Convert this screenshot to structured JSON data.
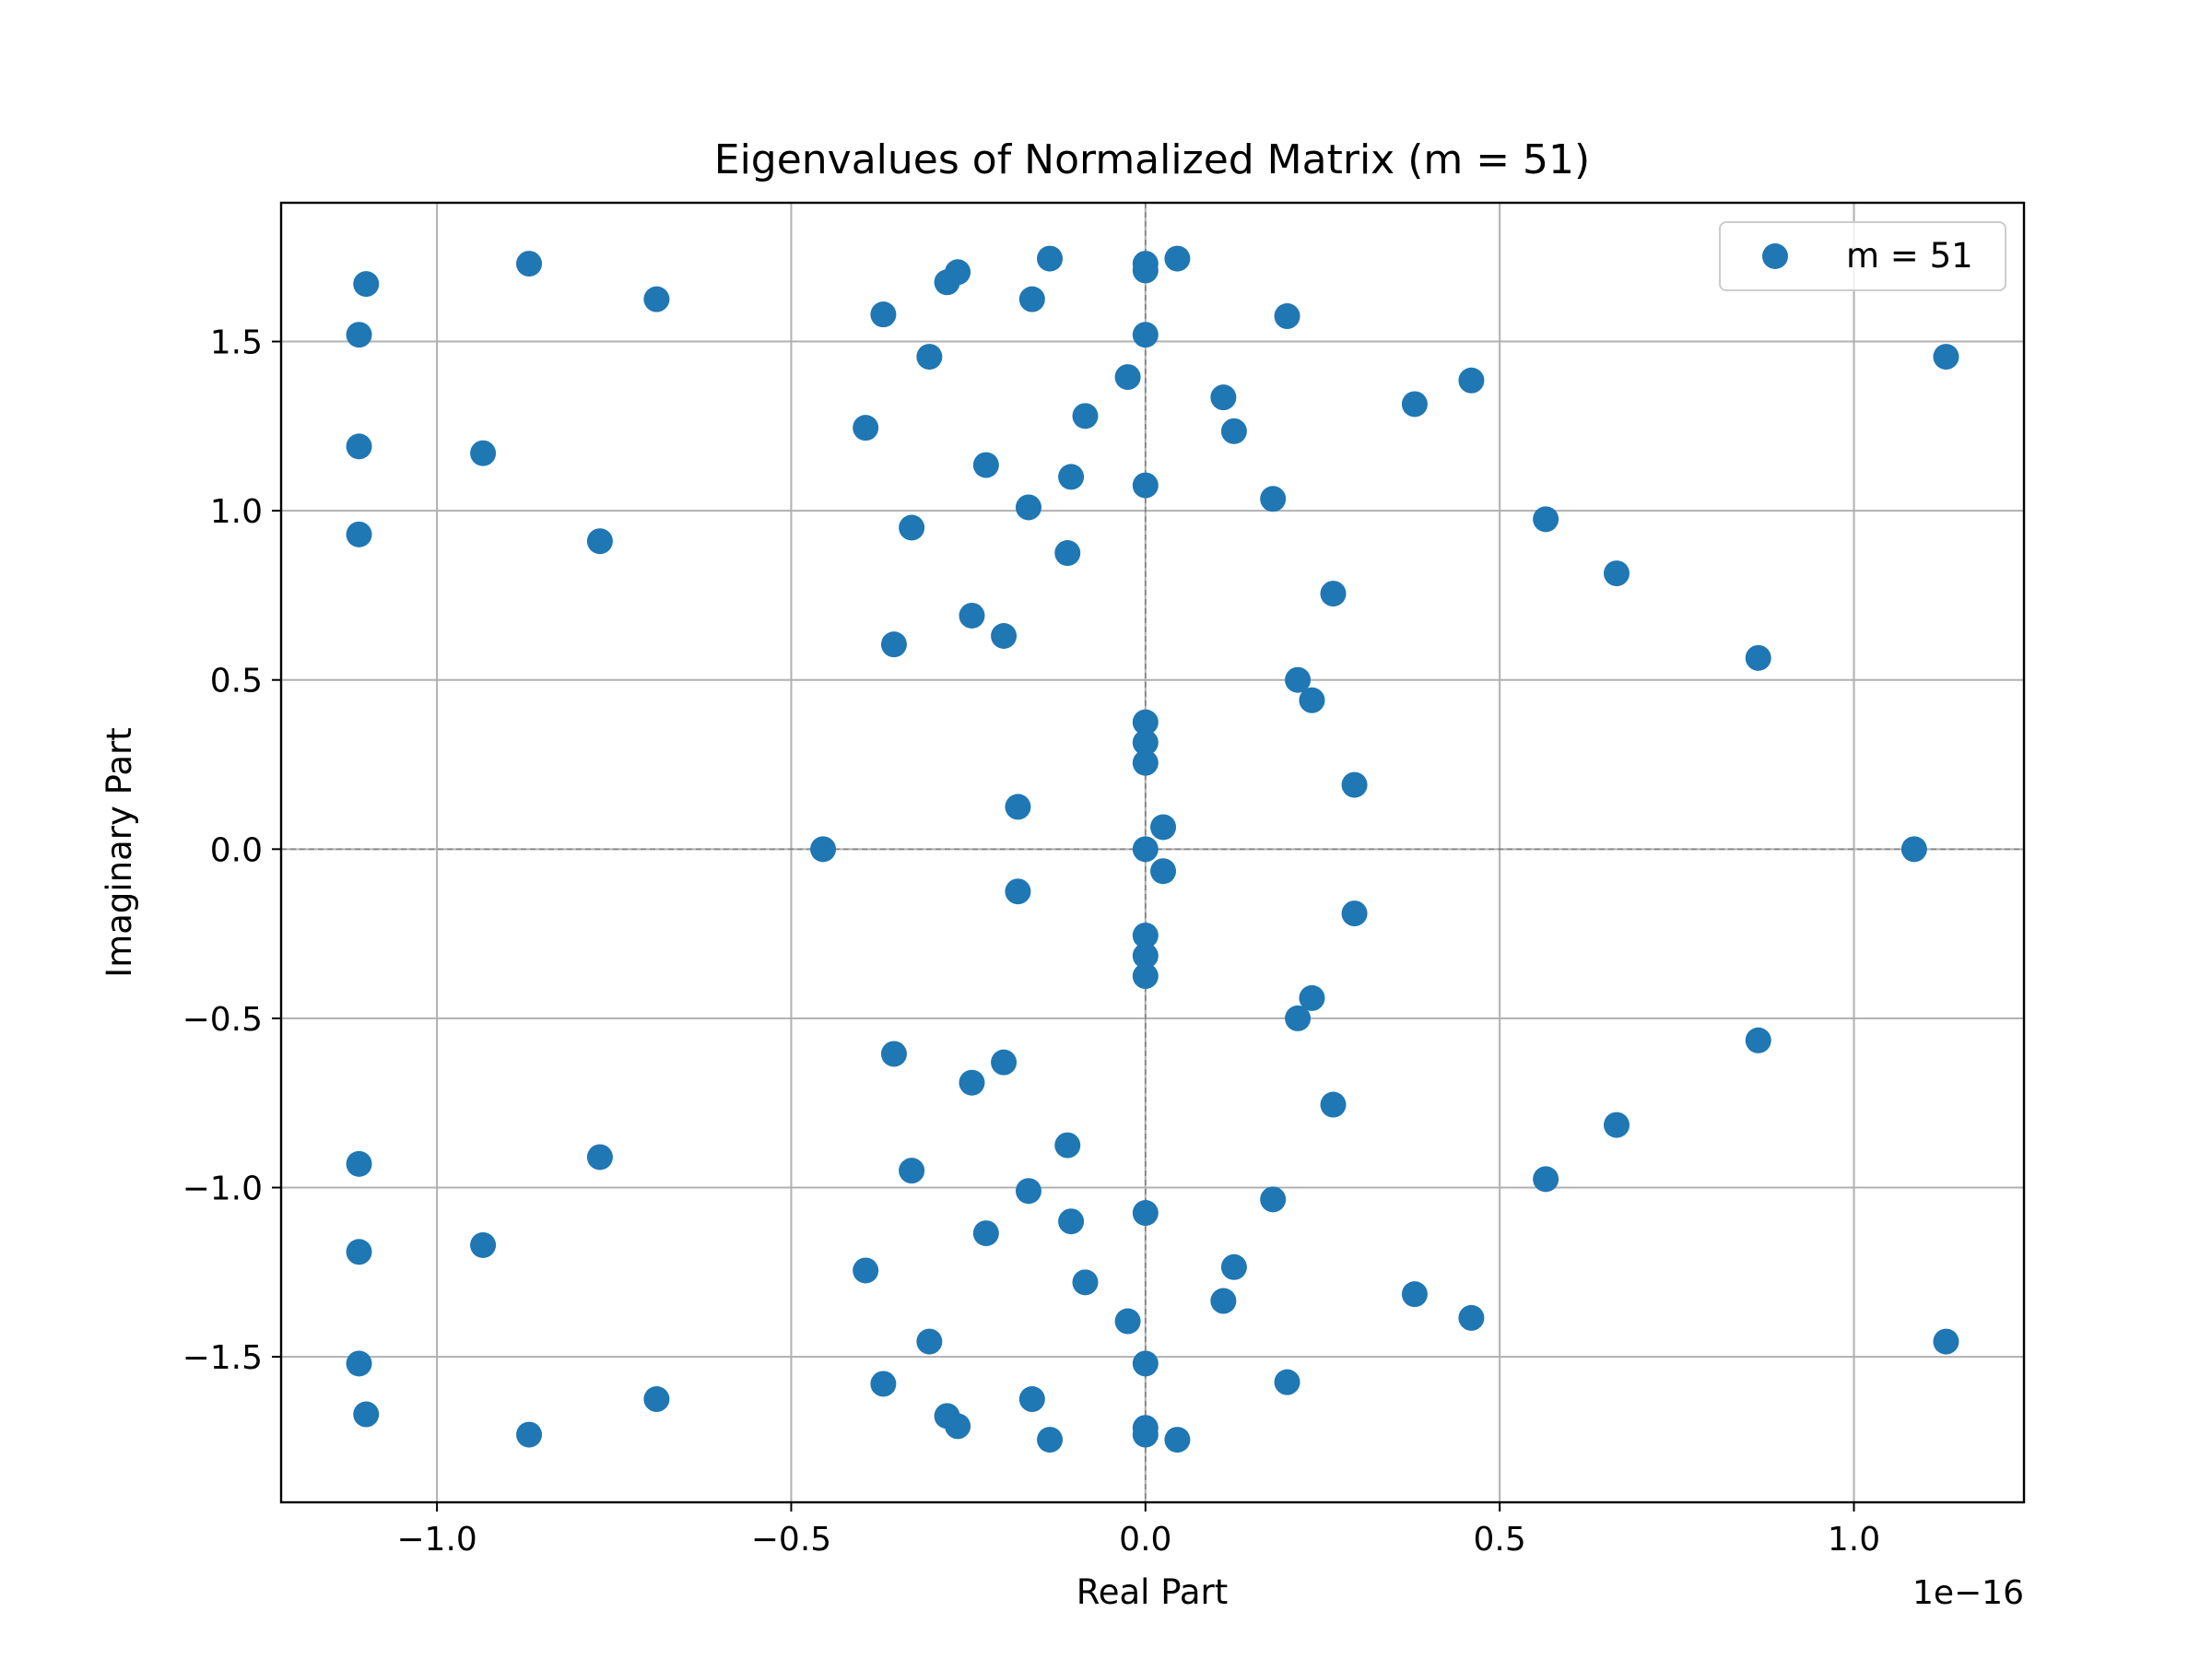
{
  "chart_data": {
    "type": "scatter",
    "title": "Eigenvalues of Normalized Matrix (m = 51)",
    "xlabel": "Real Part",
    "ylabel": "Imaginary Part",
    "x_offset_text": "1e−16",
    "x_multiplier": 1e-16,
    "xlim": [
      -1.22,
      1.24
    ],
    "ylim": [
      -1.93,
      1.91
    ],
    "xticks": [
      -1.0,
      -0.5,
      0.0,
      0.5,
      1.0
    ],
    "yticks": [
      -1.5,
      -1.0,
      -0.5,
      0.0,
      0.5,
      1.0,
      1.5
    ],
    "xtick_labels": [
      "−1.0",
      "−0.5",
      "0.0",
      "0.5",
      "1.0"
    ],
    "ytick_labels": [
      "−1.5",
      "−1.0",
      "−0.5",
      "0.0",
      "0.5",
      "1.0",
      "1.5"
    ],
    "grid": true,
    "zero_reference_lines": true,
    "legend": {
      "position": "upper right",
      "entries": [
        "m = 51"
      ]
    },
    "series": [
      {
        "name": "m = 51",
        "color": "#1f77b4",
        "x": [
          -1.1,
          -1.11,
          -1.11,
          -1.11,
          -0.87,
          -0.935,
          -0.77,
          -0.69,
          -0.455,
          -0.395,
          -0.37,
          -0.355,
          -0.33,
          -0.305,
          -0.28,
          -0.265,
          -0.245,
          -0.225,
          -0.2,
          -0.18,
          -0.165,
          -0.16,
          -0.135,
          -0.11,
          -0.105,
          -0.085,
          -0.025,
          0.0,
          0.0,
          0.0,
          0.0,
          0.0,
          0.0,
          0.0,
          0.045,
          0.025,
          0.11,
          0.125,
          0.18,
          0.2,
          0.215,
          0.235,
          0.265,
          0.295,
          0.38,
          0.46,
          0.565,
          0.665,
          0.865,
          1.085,
          1.13,
          0.0,
          -1.1,
          -1.11,
          -1.11,
          -1.11,
          -0.87,
          -0.935,
          -0.77,
          -0.69,
          -0.395,
          -0.37,
          -0.355,
          -0.33,
          -0.305,
          -0.28,
          -0.265,
          -0.245,
          -0.225,
          -0.2,
          -0.18,
          -0.165,
          -0.16,
          -0.135,
          -0.11,
          -0.105,
          -0.085,
          -0.025,
          0.0,
          0.0,
          0.0,
          0.0,
          0.0,
          0.0,
          0.0,
          0.045,
          0.025,
          0.11,
          0.125,
          0.18,
          0.2,
          0.215,
          0.235,
          0.265,
          0.295,
          0.38,
          0.46,
          0.565,
          0.665,
          0.865,
          1.13
        ],
        "y": [
          1.67,
          1.52,
          1.19,
          0.93,
          1.73,
          1.17,
          0.91,
          1.625,
          0.0,
          1.245,
          1.58,
          0.605,
          0.95,
          1.455,
          1.675,
          1.705,
          0.69,
          1.135,
          0.63,
          0.125,
          1.01,
          1.625,
          1.745,
          0.875,
          1.1,
          1.28,
          1.395,
          1.73,
          1.71,
          1.52,
          1.075,
          0.375,
          0.315,
          0.255,
          1.745,
          0.065,
          1.335,
          1.235,
          1.035,
          1.575,
          0.5,
          0.44,
          0.755,
          0.19,
          1.315,
          1.385,
          0.975,
          0.815,
          0.565,
          0.0,
          1.455,
          0.0,
          -1.67,
          -1.52,
          -1.19,
          -0.93,
          -1.73,
          -1.17,
          -0.91,
          -1.625,
          -1.245,
          -1.58,
          -0.605,
          -0.95,
          -1.455,
          -1.675,
          -1.705,
          -0.69,
          -1.135,
          -0.63,
          -0.125,
          -1.01,
          -1.625,
          -1.745,
          -0.875,
          -1.1,
          -1.28,
          -1.395,
          -1.73,
          -1.71,
          -1.52,
          -1.075,
          -0.375,
          -0.315,
          -0.255,
          -1.745,
          -0.065,
          -1.335,
          -1.235,
          -1.035,
          -1.575,
          -0.5,
          -0.44,
          -0.755,
          -0.19,
          -1.315,
          -1.385,
          -0.975,
          -0.815,
          -0.565,
          -1.455
        ]
      }
    ]
  }
}
